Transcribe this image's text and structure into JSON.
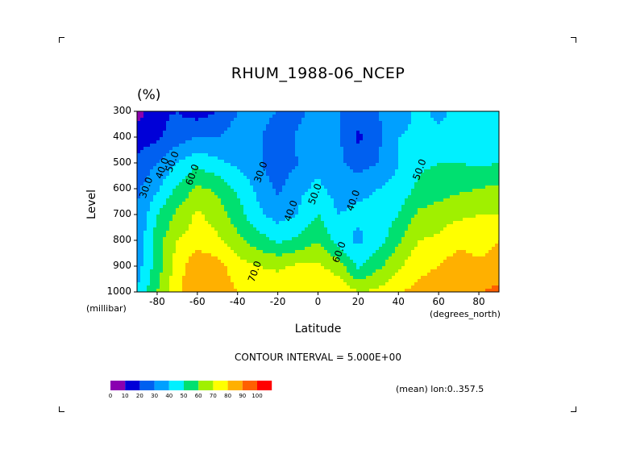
{
  "chart_data": {
    "type": "heatmap",
    "title": "RHUM_1988-06_NCEP",
    "units": "(%)",
    "xlabel": "Latitude",
    "ylabel": "Level",
    "x_units": "(degrees_north)",
    "y_units": "(millibar)",
    "x_ticks": [
      "-80",
      "-60",
      "-40",
      "-20",
      "0",
      "20",
      "40",
      "60",
      "80"
    ],
    "y_ticks": [
      "300",
      "400",
      "500",
      "600",
      "700",
      "800",
      "900",
      "1000"
    ],
    "xlim": [
      -90,
      90
    ],
    "ylim": [
      1000,
      300
    ],
    "contour_interval_text": "CONTOUR INTERVAL = 5.000E+00",
    "mean_text": "(mean) lon:0..357.5",
    "colorbar": {
      "labels": [
        "0",
        "10",
        "20",
        "30",
        "40",
        "50",
        "60",
        "70",
        "80",
        "90",
        "100"
      ],
      "colors": [
        "#8a00b0",
        "#0000d8",
        "#0060f0",
        "#00a0ff",
        "#00f0ff",
        "#00e070",
        "#a0f000",
        "#ffff00",
        "#ffb000",
        "#ff6000",
        "#ff0000"
      ]
    },
    "contour_labels": [
      {
        "text": "30.0",
        "lat": -84,
        "lev": 600
      },
      {
        "text": "40.0",
        "lat": -76,
        "lev": 525
      },
      {
        "text": "50.0",
        "lat": -71,
        "lev": 500
      },
      {
        "text": "60.0",
        "lat": -61,
        "lev": 550
      },
      {
        "text": "30.0",
        "lat": -27,
        "lev": 540
      },
      {
        "text": "40.0",
        "lat": -12,
        "lev": 690
      },
      {
        "text": "50.0",
        "lat": 0,
        "lev": 625
      },
      {
        "text": "40.0",
        "lat": 19,
        "lev": 650
      },
      {
        "text": "60.0",
        "lat": 12,
        "lev": 850
      },
      {
        "text": "70.0",
        "lat": -30,
        "lev": 925
      },
      {
        "text": "50.0",
        "lat": 52,
        "lev": 530
      }
    ],
    "lat": [
      -90,
      -80,
      -70,
      -60,
      -50,
      -40,
      -30,
      -20,
      -10,
      0,
      10,
      20,
      30,
      40,
      50,
      60,
      70,
      80,
      90
    ],
    "levels": [
      300,
      400,
      500,
      600,
      700,
      800,
      900,
      1000
    ],
    "values": [
      [
        5,
        18,
        20,
        15,
        20,
        30,
        35,
        30,
        25,
        40,
        30,
        25,
        30,
        35,
        42,
        38,
        42,
        44,
        45
      ],
      [
        15,
        18,
        25,
        30,
        30,
        35,
        32,
        22,
        32,
        40,
        32,
        18,
        28,
        40,
        42,
        42,
        45,
        45,
        46
      ],
      [
        22,
        30,
        40,
        48,
        42,
        38,
        32,
        22,
        30,
        38,
        32,
        25,
        30,
        40,
        48,
        50,
        50,
        48,
        50
      ],
      [
        28,
        38,
        52,
        62,
        58,
        48,
        38,
        28,
        38,
        42,
        36,
        38,
        40,
        44,
        52,
        55,
        58,
        60,
        62
      ],
      [
        30,
        50,
        62,
        72,
        65,
        55,
        42,
        36,
        40,
        50,
        40,
        42,
        42,
        50,
        62,
        65,
        68,
        70,
        70
      ],
      [
        32,
        55,
        70,
        75,
        72,
        62,
        55,
        48,
        52,
        60,
        45,
        38,
        45,
        58,
        70,
        72,
        78,
        75,
        80
      ],
      [
        35,
        55,
        75,
        88,
        84,
        75,
        70,
        68,
        72,
        72,
        65,
        48,
        58,
        68,
        78,
        80,
        85,
        82,
        85
      ],
      [
        40,
        60,
        78,
        88,
        85,
        80,
        78,
        78,
        78,
        80,
        78,
        70,
        72,
        80,
        82,
        84,
        86,
        90,
        92
      ]
    ]
  }
}
